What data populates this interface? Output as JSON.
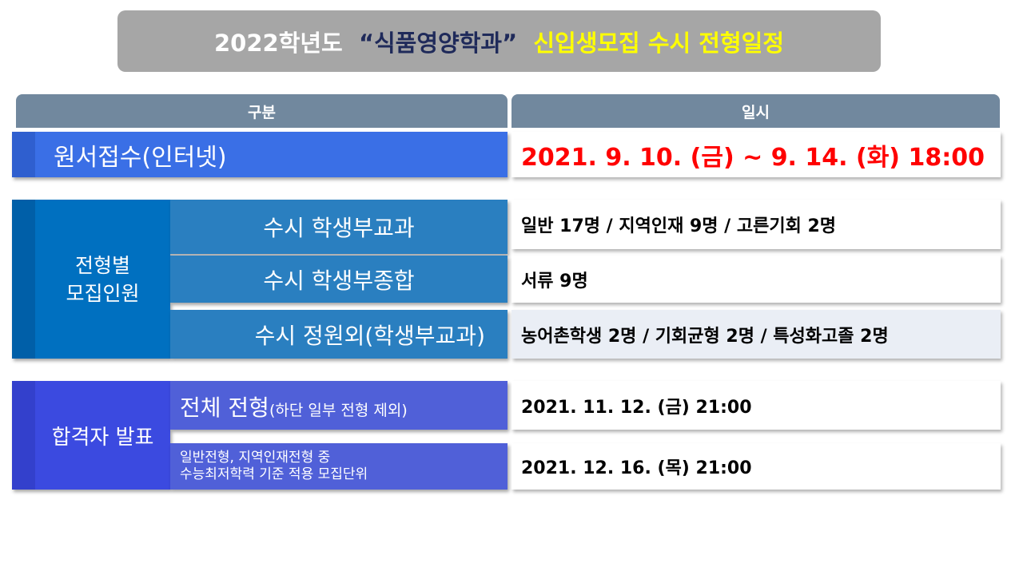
{
  "title": {
    "part1": "2022학년도  ",
    "part2": "“식품영양학과”",
    "part3": "  신입생모집 수시 전형일정",
    "colors": {
      "part1": "#ffffff",
      "part2": "#1f2a5a",
      "part3": "#ffff00"
    }
  },
  "header": {
    "col1": "구분",
    "col2": "일시"
  },
  "application": {
    "label": "원서접수(인터넷)",
    "value": "2021. 9. 10. (금) ~ 9. 14. (화) 18:00",
    "value_color": "#ff0000"
  },
  "quota": {
    "label_line1": "전형별",
    "label_line2": "모집인원",
    "rows": [
      {
        "label": "수시 학생부교과",
        "value": "일반 17명 / 지역인재 9명 / 고른기회 2명"
      },
      {
        "label": "수시 학생부종합",
        "value": "서류 9명"
      },
      {
        "label": "수시 정원외(학생부교과)",
        "value": "농어촌학생 2명 / 기회균형 2명 / 특성화고졸 2명"
      }
    ]
  },
  "announcement": {
    "label": "합격자 발표",
    "rows": [
      {
        "label_main": "전체 전형",
        "label_sub": "(하단 일부 전형 제외)",
        "value": "2021. 11. 12. (금) 21:00"
      },
      {
        "label_line1": "일반전형, 지역인재전형 중",
        "label_line2": "수능최저학력 기준 적용 모집단위",
        "value": "2021. 12. 16. (목) 21:00"
      }
    ]
  }
}
